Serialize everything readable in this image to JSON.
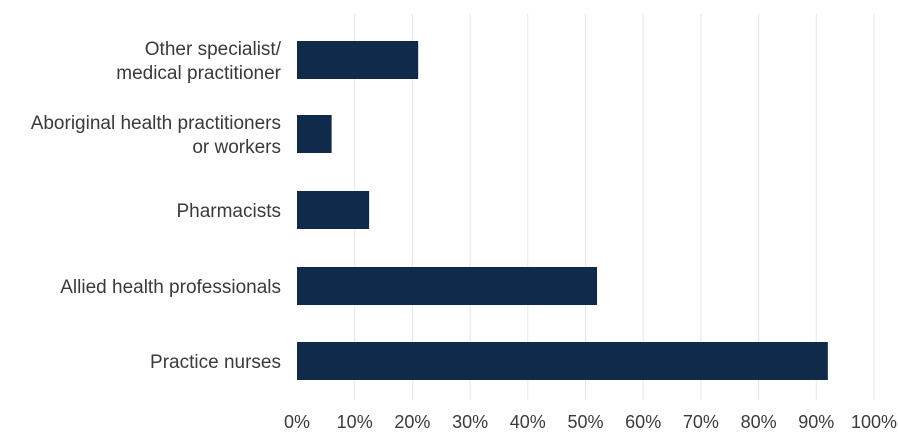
{
  "chart_data": {
    "type": "bar",
    "orientation": "horizontal",
    "title": "",
    "xlabel": "",
    "ylabel": "",
    "categories": [
      [
        "Other specialist/",
        "medical practitioner"
      ],
      [
        "Aboriginal health practitioners",
        "or workers"
      ],
      [
        "Pharmacists"
      ],
      [
        "Allied health professionals"
      ],
      [
        "Practice nurses"
      ]
    ],
    "values": [
      21,
      6,
      12.5,
      52,
      92
    ],
    "xlim": [
      0,
      100
    ],
    "x_ticks": [
      "0%",
      "10%",
      "20%",
      "30%",
      "40%",
      "50%",
      "60%",
      "70%",
      "80%",
      "90%",
      "100%"
    ],
    "x_tick_values": [
      0,
      10,
      20,
      30,
      40,
      50,
      60,
      70,
      80,
      90,
      100
    ],
    "grid": true,
    "legend": "none",
    "colors": {
      "bar": "#0f2a4a",
      "grid": "#e6e6e6",
      "text": "#3a3a3a"
    }
  }
}
